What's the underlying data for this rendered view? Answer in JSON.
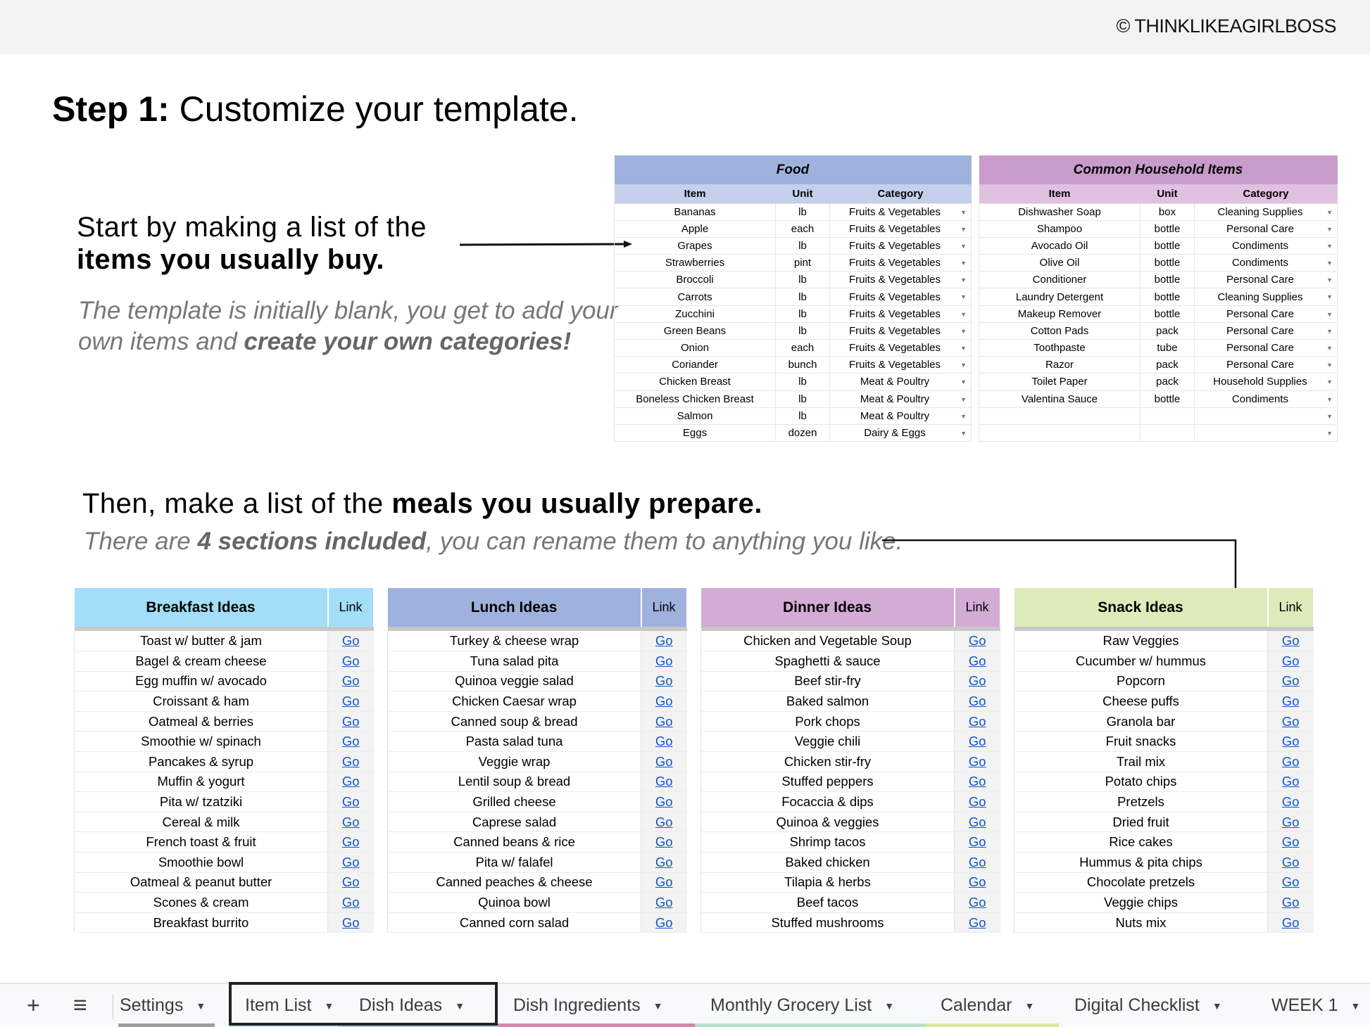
{
  "header": {
    "copyright": "© THINKLIKEAGIRLBOSS"
  },
  "step": {
    "bold": "Step 1:",
    "rest": " Customize your template."
  },
  "intro": {
    "line1": "Start by making a list of the",
    "line2": "items you usually buy.",
    "sub1": "The template is initially blank, you get to add your",
    "sub2a": "own items and ",
    "sub2b": "create your own categories!"
  },
  "meals_intro": {
    "a": "Then, make a list of the ",
    "b": "meals you usually prepare.",
    "c": "There are ",
    "d": "4 sections included",
    "e": ", you can rename them to anything you like."
  },
  "food": {
    "title": "Food",
    "columns": [
      "Item",
      "Unit",
      "Category"
    ],
    "rows": [
      [
        "Bananas",
        "lb",
        "Fruits & Vegetables"
      ],
      [
        "Apple",
        "each",
        "Fruits & Vegetables"
      ],
      [
        "Grapes",
        "lb",
        "Fruits & Vegetables"
      ],
      [
        "Strawberries",
        "pint",
        "Fruits & Vegetables"
      ],
      [
        "Broccoli",
        "lb",
        "Fruits & Vegetables"
      ],
      [
        "Carrots",
        "lb",
        "Fruits & Vegetables"
      ],
      [
        "Zucchini",
        "lb",
        "Fruits & Vegetables"
      ],
      [
        "Green Beans",
        "lb",
        "Fruits & Vegetables"
      ],
      [
        "Onion",
        "each",
        "Fruits & Vegetables"
      ],
      [
        "Coriander",
        "bunch",
        "Fruits & Vegetables"
      ],
      [
        "Chicken Breast",
        "lb",
        "Meat & Poultry"
      ],
      [
        "Boneless Chicken Breast",
        "lb",
        "Meat & Poultry"
      ],
      [
        "Salmon",
        "lb",
        "Meat & Poultry"
      ],
      [
        "Eggs",
        "dozen",
        "Dairy & Eggs"
      ]
    ]
  },
  "household": {
    "title": "Common Household Items",
    "columns": [
      "Item",
      "Unit",
      "Category"
    ],
    "rows": [
      [
        "Dishwasher Soap",
        "box",
        "Cleaning Supplies"
      ],
      [
        "Shampoo",
        "bottle",
        "Personal Care"
      ],
      [
        "Avocado Oil",
        "bottle",
        "Condiments"
      ],
      [
        "Olive Oil",
        "bottle",
        "Condiments"
      ],
      [
        "Conditioner",
        "bottle",
        "Personal Care"
      ],
      [
        "Laundry Detergent",
        "bottle",
        "Cleaning Supplies"
      ],
      [
        "Makeup Remover",
        "bottle",
        "Personal Care"
      ],
      [
        "Cotton Pads",
        "pack",
        "Personal Care"
      ],
      [
        "Toothpaste",
        "tube",
        "Personal Care"
      ],
      [
        "Razor",
        "pack",
        "Personal Care"
      ],
      [
        "Toilet Paper",
        "pack",
        "Household Supplies"
      ],
      [
        "Valentina Sauce",
        "bottle",
        "Condiments"
      ],
      [
        "",
        "",
        ""
      ],
      [
        "",
        "",
        ""
      ]
    ]
  },
  "meals": [
    {
      "title": "Breakfast Ideas",
      "link_header": "Link",
      "color": "#a3def8",
      "link_text": "Go",
      "items": [
        "Toast w/ butter & jam",
        "Bagel & cream cheese",
        "Egg muffin w/ avocado",
        "Croissant & ham",
        "Oatmeal & berries",
        "Smoothie w/ spinach",
        "Pancakes & syrup",
        "Muffin & yogurt",
        "Pita w/ tzatziki",
        "Cereal & milk",
        "French toast & fruit",
        "Smoothie bowl",
        "Oatmeal & peanut butter",
        "Scones & cream",
        "Breakfast burrito"
      ]
    },
    {
      "title": "Lunch Ideas",
      "link_header": "Link",
      "color": "#9fb1dd",
      "link_text": "Go",
      "items": [
        "Turkey & cheese wrap",
        "Tuna salad pita",
        "Quinoa veggie salad",
        "Chicken Caesar wrap",
        "Canned soup & bread",
        "Pasta salad tuna",
        "Veggie wrap",
        "Lentil soup & bread",
        "Grilled cheese",
        "Caprese salad",
        "Canned beans & rice",
        "Pita w/ falafel",
        "Canned peaches & cheese",
        "Quinoa bowl",
        "Canned corn salad"
      ]
    },
    {
      "title": "Dinner Ideas",
      "link_header": "Link",
      "color": "#d3acd6",
      "link_text": "Go",
      "items": [
        "Chicken and Vegetable Soup",
        "Spaghetti & sauce",
        "Beef stir-fry",
        "Baked salmon",
        "Pork chops",
        "Veggie chili",
        "Chicken stir-fry",
        "Stuffed peppers",
        "Focaccia & dips",
        "Quinoa & veggies",
        "Shrimp tacos",
        "Baked chicken",
        "Tilapia & herbs",
        "Beef tacos",
        "Stuffed mushrooms"
      ]
    },
    {
      "title": "Snack Ideas",
      "link_header": "Link",
      "color": "#dcebb9",
      "link_text": "Go",
      "items": [
        "Raw Veggies",
        "Cucumber w/ hummus",
        "Popcorn",
        "Cheese puffs",
        "Granola bar",
        "Fruit snacks",
        "Trail mix",
        "Potato chips",
        "Pretzels",
        "Dried fruit",
        "Rice cakes",
        "Hummus & pita chips",
        "Chocolate pretzels",
        "Veggie chips",
        "Nuts mix"
      ]
    }
  ],
  "tabs": {
    "add": "+",
    "menu": "≡",
    "items": [
      {
        "label": "Settings",
        "color": "#9e9e9e"
      },
      {
        "label": "Item List",
        "color": "#bfe3f2"
      },
      {
        "label": "Dish Ideas",
        "color": "#a8c6e8"
      },
      {
        "label": "Dish Ingredients",
        "color": "#d08aac"
      },
      {
        "label": "Monthly Grocery List",
        "color": "#b7dfca"
      },
      {
        "label": "Calendar",
        "color": "#d8e7a2"
      },
      {
        "label": "Digital Checklist",
        "color": ""
      },
      {
        "label": "WEEK 1",
        "color": ""
      }
    ],
    "selected": [
      "Item List",
      "Dish Ideas"
    ]
  }
}
